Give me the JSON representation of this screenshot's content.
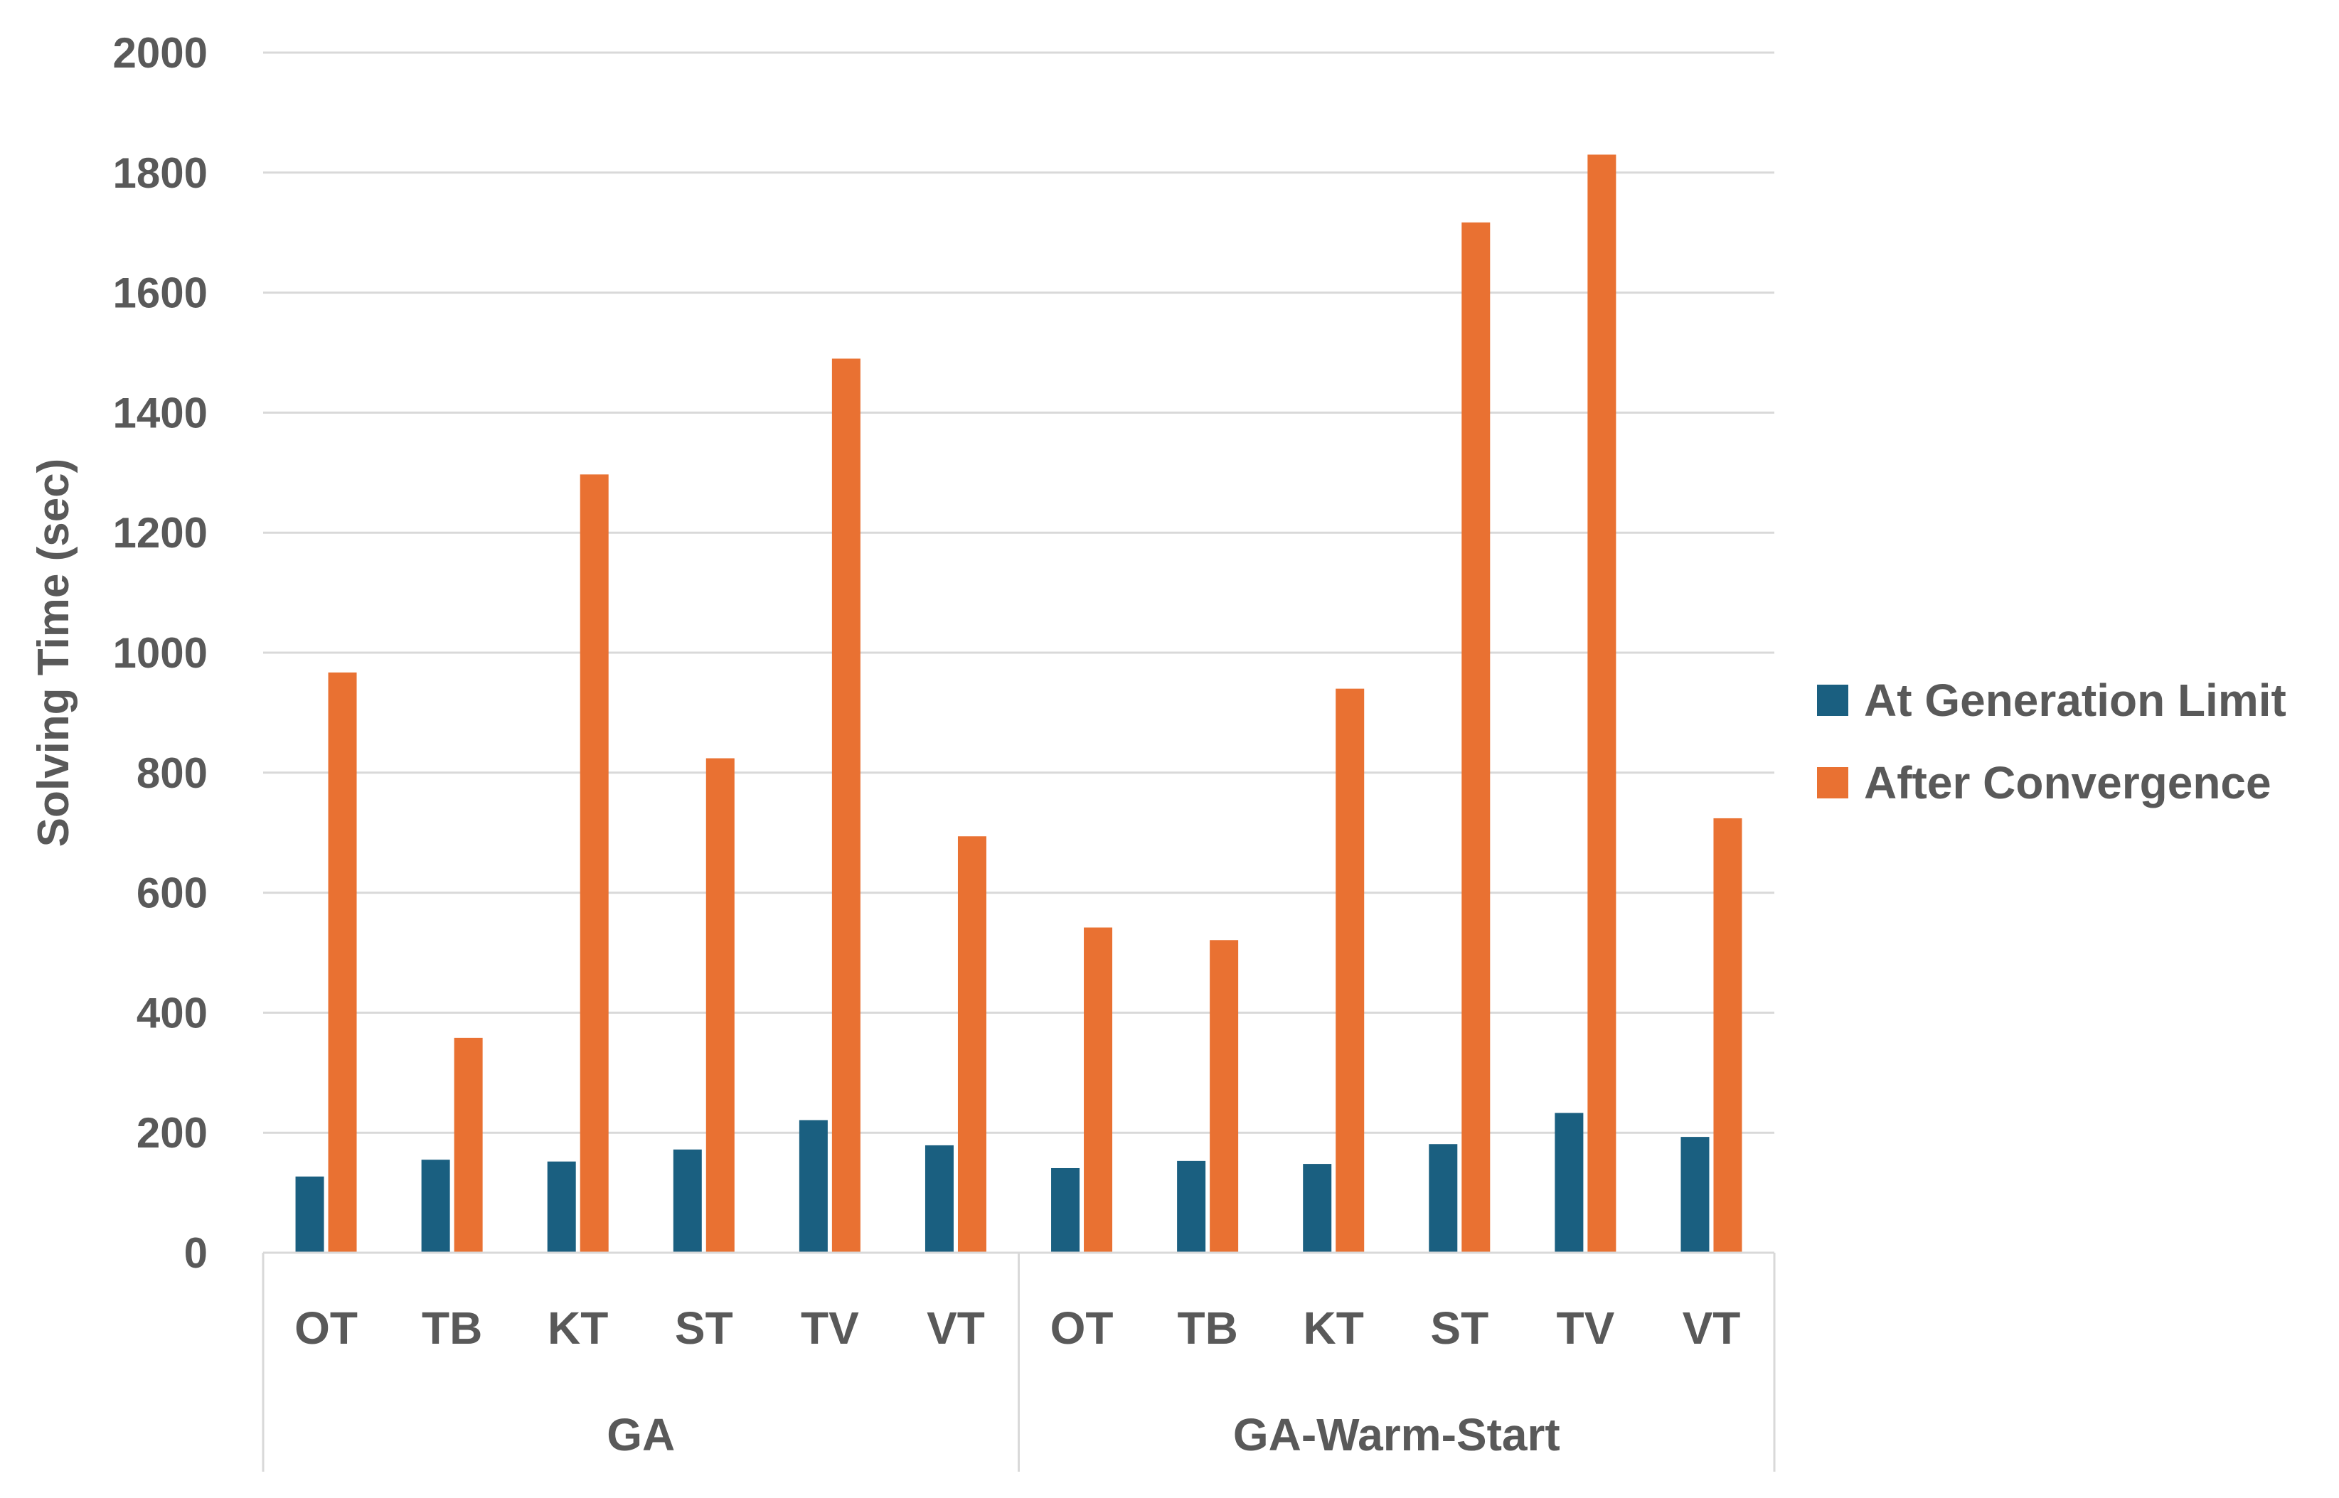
{
  "chart_data": {
    "type": "bar",
    "title": "",
    "xlabel": "",
    "ylabel": "Solving Time (sec)",
    "ylim": [
      0,
      2000
    ],
    "yticks": [
      0,
      200,
      400,
      600,
      800,
      1000,
      1200,
      1400,
      1600,
      1800,
      2000
    ],
    "grid": true,
    "legend_position": "right",
    "groups": [
      {
        "name": "GA",
        "categories": [
          "OT",
          "TB",
          "KT",
          "ST",
          "TV",
          "VT"
        ]
      },
      {
        "name": "GA-Warm-Start",
        "categories": [
          "OT",
          "TB",
          "KT",
          "ST",
          "TV",
          "VT"
        ]
      }
    ],
    "series": [
      {
        "name": "At Generation Limit",
        "color": "#1a5f80",
        "values": [
          127,
          155,
          152,
          172,
          221,
          179,
          141,
          153,
          148,
          181,
          233,
          193
        ]
      },
      {
        "name": "After Convergence",
        "color": "#e97132",
        "values": [
          967,
          358,
          1297,
          824,
          1490,
          694,
          542,
          521,
          940,
          1717,
          1830,
          724
        ]
      }
    ]
  }
}
